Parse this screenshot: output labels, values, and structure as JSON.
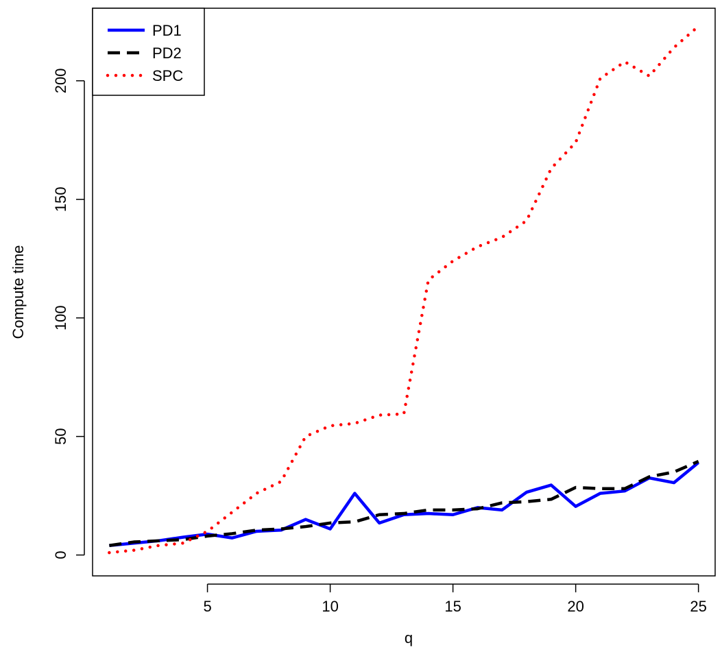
{
  "chart_data": {
    "type": "line",
    "title": "",
    "xlabel": "q",
    "ylabel": "Compute time",
    "x": [
      1,
      2,
      3,
      4,
      5,
      6,
      7,
      8,
      9,
      10,
      11,
      12,
      13,
      14,
      15,
      16,
      17,
      18,
      19,
      20,
      21,
      22,
      23,
      24,
      25
    ],
    "xlim": [
      0.32,
      25.68
    ],
    "ylim": [
      -8.8,
      230.6
    ],
    "xticks": [
      5,
      10,
      15,
      20,
      25
    ],
    "yticks": [
      0,
      50,
      100,
      150,
      200
    ],
    "grid": false,
    "legend_position": "top-left",
    "series": [
      {
        "name": "PD1",
        "color": "#0000ff",
        "line_style": "solid",
        "values": [
          4.0,
          5.0,
          6.0,
          7.5,
          8.8,
          7.2,
          10.0,
          10.5,
          15.0,
          11.0,
          26.0,
          13.5,
          17.0,
          17.5,
          17.0,
          20.0,
          19.0,
          26.5,
          29.5,
          20.5,
          26.0,
          27.0,
          32.5,
          30.5,
          39.0
        ]
      },
      {
        "name": "PD2",
        "color": "#000000",
        "line_style": "dashed",
        "values": [
          4.0,
          5.5,
          6.0,
          6.5,
          8.0,
          9.0,
          10.5,
          11.0,
          12.0,
          13.5,
          14.0,
          17.0,
          17.5,
          19.0,
          19.0,
          19.5,
          22.0,
          22.5,
          23.5,
          28.5,
          28.0,
          28.0,
          33.0,
          35.0,
          39.5
        ]
      },
      {
        "name": "SPC",
        "color": "#ff0000",
        "line_style": "dotted",
        "values": [
          1.0,
          2.0,
          4.0,
          5.0,
          10.0,
          18.0,
          26.0,
          31.0,
          50.0,
          54.5,
          55.5,
          59.0,
          59.5,
          116.0,
          124.0,
          130.0,
          134.0,
          141.0,
          163.0,
          174.0,
          201.0,
          208.0,
          202.0,
          214.0,
          223.0
        ]
      }
    ]
  }
}
